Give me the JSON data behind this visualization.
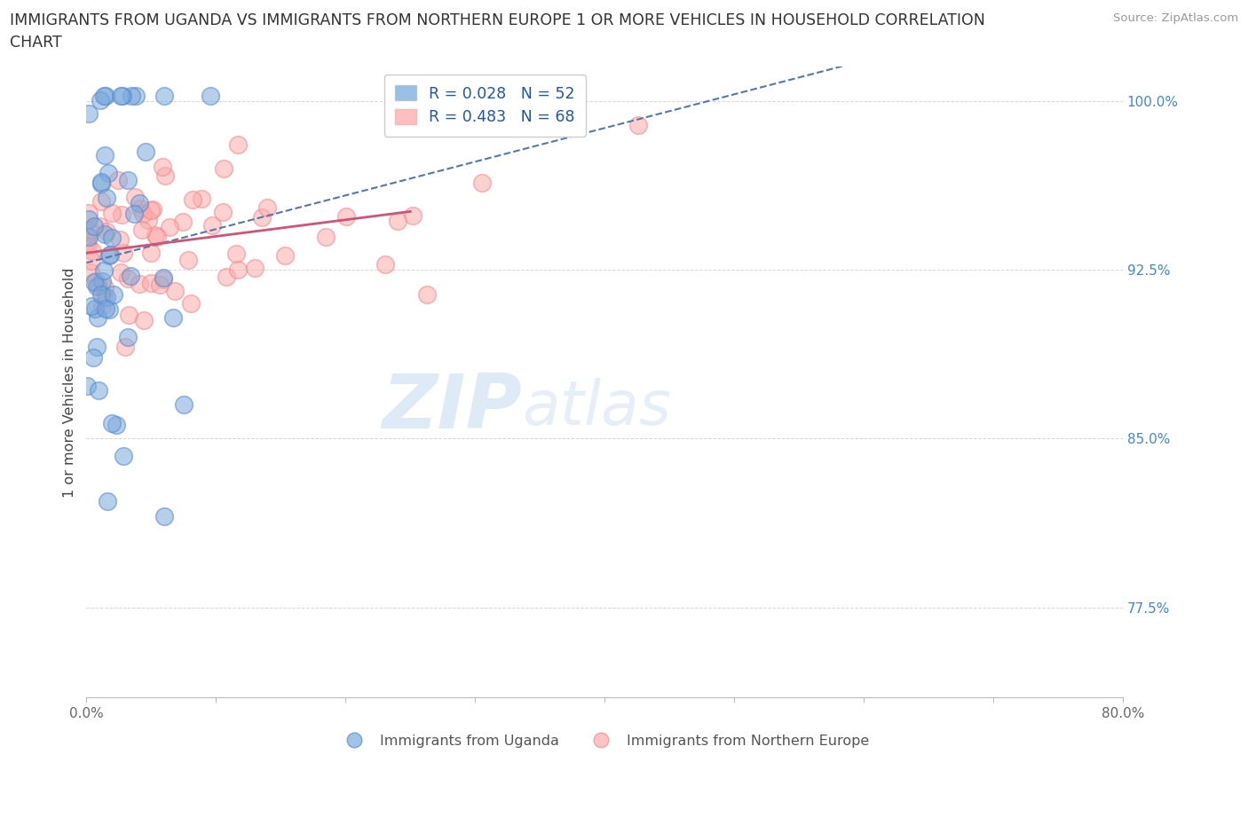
{
  "title_line1": "IMMIGRANTS FROM UGANDA VS IMMIGRANTS FROM NORTHERN EUROPE 1 OR MORE VEHICLES IN HOUSEHOLD CORRELATION",
  "title_line2": "CHART",
  "source_text": "Source: ZipAtlas.com",
  "ylabel": "1 or more Vehicles in Household",
  "watermark_zip": "ZIP",
  "watermark_atlas": "atlas",
  "uganda_color": "#7aaadd",
  "uganda_edge": "#5588cc",
  "northern_europe_color": "#ffaaaa",
  "northern_europe_edge": "#ee8888",
  "uganda_R": 0.028,
  "uganda_N": 52,
  "northern_europe_R": 0.483,
  "northern_europe_N": 68,
  "legend_label_uganda": "Immigrants from Uganda",
  "legend_label_northern": "Immigrants from Northern Europe",
  "xlim": [
    0.0,
    0.8
  ],
  "ylim": [
    0.735,
    1.015
  ],
  "ytick_positions": [
    0.775,
    0.85,
    0.925,
    1.0
  ],
  "ytick_labels": [
    "77.5%",
    "85.0%",
    "92.5%",
    "100.0%"
  ],
  "ne_trend_color": "#cc5577",
  "ug_trend_color": "#5577aa",
  "grid_color": "#cccccc",
  "title_color": "#333333",
  "source_color": "#999999",
  "ytick_color": "#4488cc",
  "xtick_color": "#666666"
}
